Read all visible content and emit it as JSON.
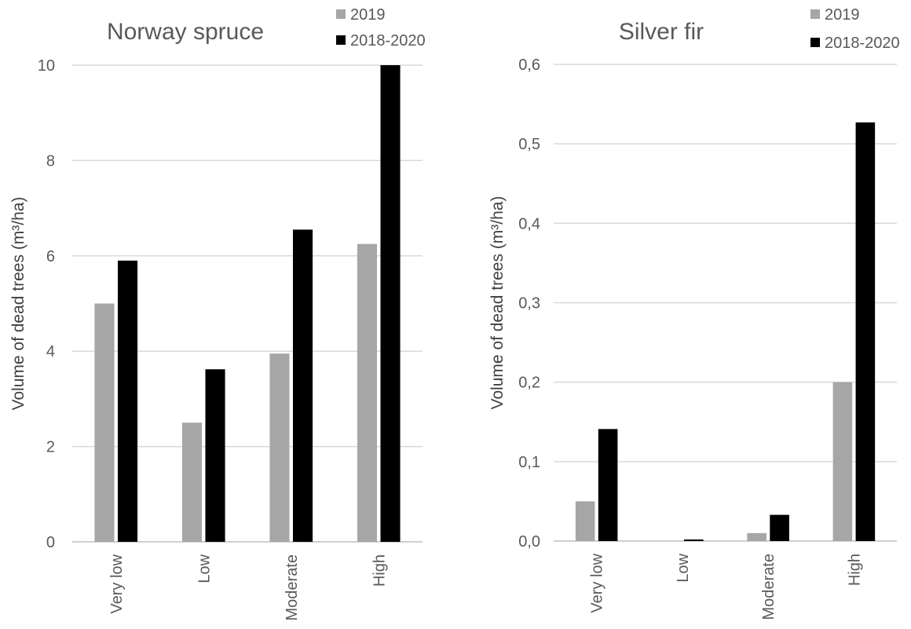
{
  "chart_data": [
    {
      "type": "bar",
      "title": "Norway spruce",
      "ylabel": "Volume of dead trees (m³/ha)",
      "categories": [
        "Very low",
        "Low",
        "Moderate",
        "High"
      ],
      "series": [
        {
          "name": "2019",
          "color": "#a6a6a6",
          "values": [
            5.0,
            2.5,
            3.95,
            6.25
          ]
        },
        {
          "name": "2018-2020",
          "color": "#000000",
          "values": [
            5.9,
            3.62,
            6.55,
            10.0
          ]
        }
      ],
      "ylim": [
        0,
        10
      ],
      "yticks": [
        0,
        2,
        4,
        6,
        8,
        10
      ],
      "ytick_labels": [
        "0",
        "2",
        "4",
        "6",
        "8",
        "10"
      ],
      "grid": true,
      "legend_position": "top-right"
    },
    {
      "type": "bar",
      "title": "Silver fir",
      "ylabel": "Volume of dead trees (m³/ha)",
      "categories": [
        "Very low",
        "Low",
        "Moderate",
        "High"
      ],
      "series": [
        {
          "name": "2019",
          "color": "#a6a6a6",
          "values": [
            0.05,
            0.0,
            0.01,
            0.2
          ]
        },
        {
          "name": "2018-2020",
          "color": "#000000",
          "values": [
            0.141,
            0.002,
            0.033,
            0.527
          ]
        }
      ],
      "ylim": [
        0,
        0.6
      ],
      "yticks": [
        0,
        0.1,
        0.2,
        0.3,
        0.4,
        0.5,
        0.6
      ],
      "ytick_labels": [
        "0,0",
        "0,1",
        "0,2",
        "0,3",
        "0,4",
        "0,5",
        "0,6"
      ],
      "grid": true,
      "legend_position": "top-right"
    }
  ]
}
